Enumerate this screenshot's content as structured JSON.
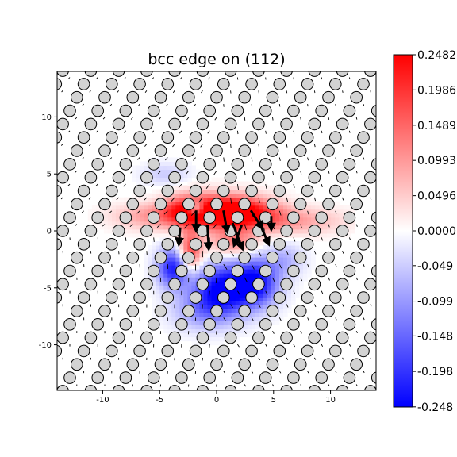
{
  "chart_data": {
    "type": "heatmap",
    "title": "bcc edge on (112)",
    "xlabel": "",
    "ylabel": "",
    "xlim": [
      -14,
      14
    ],
    "ylim": [
      -14,
      14
    ],
    "x_ticks": [
      "-10",
      "-5",
      "0",
      "5",
      "10"
    ],
    "y_ticks": [
      "10",
      "5",
      "0",
      "-5",
      "-10"
    ],
    "colormap": "bwr",
    "colorbar": {
      "ticks": [
        "0.2482",
        "0.1986",
        "0.1489",
        "0.0993",
        "0.0496",
        "0.0000",
        "-0.049",
        "-0.099",
        "-0.148",
        "-0.198",
        "-0.248"
      ],
      "min": -0.2482,
      "max": 0.2482,
      "colors": {
        "low": "#0000ff",
        "mid": "#ffffff",
        "high": "#ff0000"
      }
    },
    "lattice": {
      "atom_color": "#d3d3d3",
      "edge_color": "#000000",
      "row_spacing": 1.172,
      "col_spacing": 2.455
    },
    "strain_field": [
      {
        "x": -2.3,
        "y": 1.8,
        "v": 0.24,
        "sx": 1.6,
        "sy": 1.0
      },
      {
        "x": 0.6,
        "y": 1.7,
        "v": 0.23,
        "sx": 1.8,
        "sy": 1.0
      },
      {
        "x": 3.0,
        "y": 1.6,
        "v": 0.18,
        "sx": 2.0,
        "sy": 1.0
      },
      {
        "x": -5.5,
        "y": 1.3,
        "v": 0.1,
        "sx": 2.5,
        "sy": 0.8
      },
      {
        "x": 6.8,
        "y": 0.9,
        "v": 0.09,
        "sx": 3.0,
        "sy": 0.8
      },
      {
        "x": -2.3,
        "y": -1.8,
        "v": 0.2,
        "sx": 0.7,
        "sy": 1.2
      },
      {
        "x": 1.5,
        "y": -1.0,
        "v": 0.12,
        "sx": 1.5,
        "sy": 0.8
      },
      {
        "x": -1.8,
        "y": 2.0,
        "v": -0.24,
        "sx": 0.6,
        "sy": 0.5
      },
      {
        "x": -3.8,
        "y": -3.2,
        "v": -0.22,
        "sx": 1.0,
        "sy": 1.2
      },
      {
        "x": 0.5,
        "y": -5.0,
        "v": -0.25,
        "sx": 1.8,
        "sy": 1.5
      },
      {
        "x": 3.5,
        "y": -4.5,
        "v": -0.22,
        "sx": 1.4,
        "sy": 1.5
      },
      {
        "x": -4.5,
        "y": 5.0,
        "v": -0.05,
        "sx": 1.5,
        "sy": 0.7
      },
      {
        "x": -1.0,
        "y": -7.0,
        "v": -0.1,
        "sx": 2.0,
        "sy": 1.2
      },
      {
        "x": 6.0,
        "y": -2.5,
        "v": -0.07,
        "sx": 1.2,
        "sy": 1.0
      }
    ],
    "displacement_arrows": [
      {
        "x": -1.8,
        "y": 1.8,
        "dx": 0.0,
        "dy": -1.6
      },
      {
        "x": -0.8,
        "y": 0.5,
        "dx": 0.1,
        "dy": -1.9
      },
      {
        "x": 0.6,
        "y": 1.8,
        "dx": 0.3,
        "dy": -1.7
      },
      {
        "x": 1.4,
        "y": 0.7,
        "dx": 0.8,
        "dy": -2.1
      },
      {
        "x": 2.2,
        "y": 0.5,
        "dx": -0.6,
        "dy": -1.6
      },
      {
        "x": 3.0,
        "y": 1.8,
        "dx": 0.9,
        "dy": -1.4
      },
      {
        "x": 3.8,
        "y": 0.6,
        "dx": 0.7,
        "dy": -1.6
      },
      {
        "x": -3.2,
        "y": 0.3,
        "dx": -0.1,
        "dy": -1.3
      },
      {
        "x": 4.8,
        "y": 1.3,
        "dx": 0.0,
        "dy": -1.0
      }
    ]
  }
}
